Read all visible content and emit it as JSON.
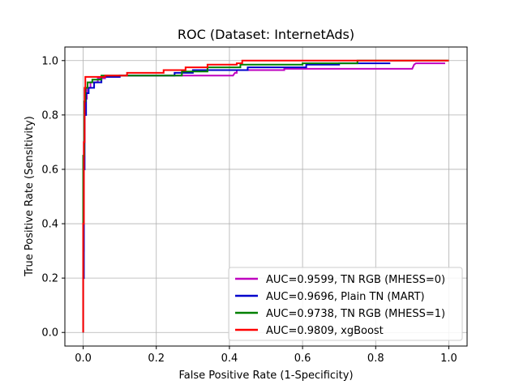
{
  "chart_data": {
    "type": "line",
    "title": "ROC (Dataset: InternetAds)",
    "xlabel": "False Positive Rate (1-Specificity)",
    "ylabel": "True Positive Rate (Sensitivity)",
    "xlim": [
      -0.05,
      1.05
    ],
    "ylim": [
      -0.05,
      1.05
    ],
    "xticks": [
      0.0,
      0.2,
      0.4,
      0.6,
      0.8,
      1.0
    ],
    "yticks": [
      0.0,
      0.2,
      0.4,
      0.6,
      0.8,
      1.0
    ],
    "xtick_labels": [
      "0.0",
      "0.2",
      "0.4",
      "0.6",
      "0.8",
      "1.0"
    ],
    "ytick_labels": [
      "0.0",
      "0.2",
      "0.4",
      "0.6",
      "0.8",
      "1.0"
    ],
    "grid": true,
    "legend_position": "bottom-right",
    "series": [
      {
        "name": "AUC=0.9599, TN RGB (MHESS=0)",
        "color": "#bf00bf",
        "x": [
          0,
          0,
          0.002,
          0.002,
          0.004,
          0.004,
          0.006,
          0.006,
          0.01,
          0.01,
          0.02,
          0.02,
          0.04,
          0.04,
          0.06,
          0.06,
          0.1,
          0.1,
          0.25,
          0.25,
          0.41,
          0.415,
          0.42,
          0.42,
          0.55,
          0.55,
          0.9,
          0.905,
          0.91,
          0.91,
          0.99
        ],
        "y": [
          0,
          0.3,
          0.3,
          0.7,
          0.7,
          0.82,
          0.82,
          0.86,
          0.86,
          0.9,
          0.9,
          0.92,
          0.92,
          0.935,
          0.935,
          0.94,
          0.94,
          0.945,
          0.945,
          0.945,
          0.945,
          0.955,
          0.955,
          0.965,
          0.965,
          0.97,
          0.97,
          0.985,
          0.99,
          0.99,
          0.99
        ]
      },
      {
        "name": "AUC=0.9696, Plain TN (MART)",
        "color": "#0000cc",
        "x": [
          0,
          0,
          0.002,
          0.002,
          0.004,
          0.004,
          0.008,
          0.008,
          0.015,
          0.015,
          0.03,
          0.03,
          0.05,
          0.05,
          0.1,
          0.1,
          0.25,
          0.25,
          0.3,
          0.3,
          0.45,
          0.45,
          0.61,
          0.61,
          0.7,
          0.7,
          0.84
        ],
        "y": [
          0,
          0.2,
          0.2,
          0.6,
          0.6,
          0.8,
          0.8,
          0.88,
          0.88,
          0.9,
          0.9,
          0.92,
          0.92,
          0.94,
          0.94,
          0.945,
          0.945,
          0.955,
          0.955,
          0.965,
          0.965,
          0.975,
          0.975,
          0.985,
          0.985,
          0.99,
          0.99
        ]
      },
      {
        "name": "AUC=0.9738, TN RGB (MHESS=1)",
        "color": "#008000",
        "x": [
          0,
          0,
          0.003,
          0.003,
          0.006,
          0.006,
          0.012,
          0.012,
          0.025,
          0.025,
          0.05,
          0.05,
          0.1,
          0.1,
          0.27,
          0.27,
          0.34,
          0.34,
          0.43,
          0.43,
          0.6,
          0.6,
          0.75,
          0.75,
          1.0
        ],
        "y": [
          0,
          0.65,
          0.65,
          0.85,
          0.85,
          0.9,
          0.9,
          0.92,
          0.92,
          0.93,
          0.93,
          0.945,
          0.945,
          0.945,
          0.945,
          0.96,
          0.96,
          0.975,
          0.975,
          0.985,
          0.985,
          0.99,
          0.99,
          1.0,
          1.0
        ]
      },
      {
        "name": "AUC=0.9809, xgBoost",
        "color": "#ff0000",
        "x": [
          0,
          0,
          0.002,
          0.002,
          0.004,
          0.004,
          0.006,
          0.006,
          0.03,
          0.03,
          0.06,
          0.06,
          0.12,
          0.12,
          0.22,
          0.22,
          0.28,
          0.28,
          0.34,
          0.34,
          0.42,
          0.42,
          0.435,
          0.435,
          0.55,
          0.55,
          1.0
        ],
        "y": [
          0,
          0.4,
          0.4,
          0.7,
          0.7,
          0.9,
          0.9,
          0.94,
          0.94,
          0.94,
          0.94,
          0.945,
          0.945,
          0.955,
          0.955,
          0.965,
          0.965,
          0.975,
          0.975,
          0.985,
          0.985,
          0.99,
          0.99,
          1.0,
          1.0,
          1.0,
          1.0
        ]
      }
    ]
  }
}
